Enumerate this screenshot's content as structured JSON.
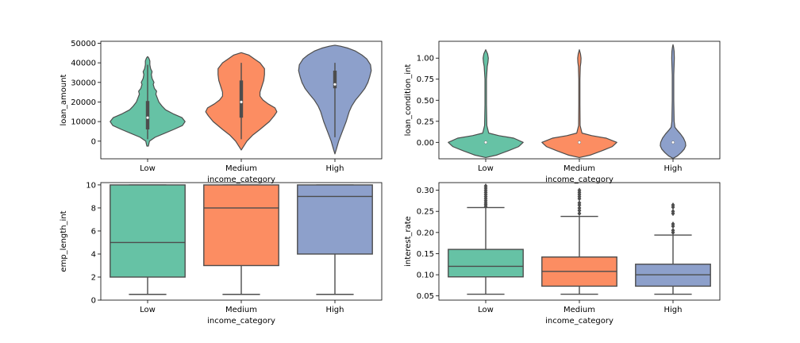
{
  "colors": {
    "Low": "#66c2a5",
    "Medium": "#fc8d62",
    "High": "#8da0cb",
    "edge": "#4d4d4d"
  },
  "chart_data": [
    {
      "type": "violin",
      "xlabel": "income_category",
      "ylabel": "loan_amount",
      "categories": [
        "Low",
        "Medium",
        "High"
      ],
      "ylim": [
        -9000,
        51000
      ],
      "yticks": [
        0,
        10000,
        20000,
        30000,
        40000,
        50000
      ],
      "ytick_labels": [
        "0",
        "10000",
        "20000",
        "30000",
        "40000",
        "50000"
      ],
      "series": [
        {
          "name": "Low",
          "profile": [
            [
              -2500,
              0.02
            ],
            [
              0,
              0.05
            ],
            [
              2000,
              0.2
            ],
            [
              4000,
              0.45
            ],
            [
              6000,
              0.7
            ],
            [
              8000,
              0.93
            ],
            [
              10000,
              1.0
            ],
            [
              12000,
              0.92
            ],
            [
              14000,
              0.68
            ],
            [
              16000,
              0.48
            ],
            [
              18000,
              0.38
            ],
            [
              20000,
              0.3
            ],
            [
              22000,
              0.26
            ],
            [
              24000,
              0.22
            ],
            [
              25500,
              0.24
            ],
            [
              27000,
              0.18
            ],
            [
              29000,
              0.15
            ],
            [
              30000,
              0.17
            ],
            [
              32000,
              0.12
            ],
            [
              34000,
              0.1
            ],
            [
              35500,
              0.12
            ],
            [
              37000,
              0.08
            ],
            [
              39000,
              0.06
            ],
            [
              41000,
              0.06
            ],
            [
              42500,
              0.03
            ],
            [
              43200,
              0.0
            ]
          ],
          "q1": 6000,
          "median": 12000,
          "q3": 20500,
          "wmin": 1000,
          "wmax": 39000
        },
        {
          "name": "Medium",
          "profile": [
            [
              -4500,
              0.0
            ],
            [
              -3000,
              0.05
            ],
            [
              0,
              0.15
            ],
            [
              3000,
              0.3
            ],
            [
              6000,
              0.5
            ],
            [
              10000,
              0.75
            ],
            [
              13000,
              0.88
            ],
            [
              15000,
              0.95
            ],
            [
              17000,
              0.9
            ],
            [
              19000,
              0.72
            ],
            [
              21000,
              0.58
            ],
            [
              23000,
              0.5
            ],
            [
              25000,
              0.5
            ],
            [
              28000,
              0.55
            ],
            [
              31000,
              0.6
            ],
            [
              34000,
              0.62
            ],
            [
              37000,
              0.62
            ],
            [
              40000,
              0.5
            ],
            [
              42000,
              0.35
            ],
            [
              44000,
              0.2
            ],
            [
              45200,
              0.0
            ]
          ],
          "q1": 12000,
          "median": 20000,
          "q3": 31000,
          "wmin": 1000,
          "wmax": 40000
        },
        {
          "name": "High",
          "profile": [
            [
              -6500,
              0.0
            ],
            [
              -4000,
              0.04
            ],
            [
              0,
              0.1
            ],
            [
              5000,
              0.2
            ],
            [
              10000,
              0.3
            ],
            [
              15000,
              0.38
            ],
            [
              18000,
              0.45
            ],
            [
              21000,
              0.55
            ],
            [
              24000,
              0.68
            ],
            [
              27000,
              0.8
            ],
            [
              30000,
              0.88
            ],
            [
              33000,
              0.93
            ],
            [
              36000,
              0.97
            ],
            [
              39000,
              0.95
            ],
            [
              42000,
              0.85
            ],
            [
              44000,
              0.72
            ],
            [
              46000,
              0.55
            ],
            [
              47500,
              0.35
            ],
            [
              48500,
              0.15
            ],
            [
              49000,
              0.0
            ]
          ],
          "q1": 27000,
          "median": 29000,
          "q3": 36000,
          "wmin": 2000,
          "wmax": 40000
        }
      ]
    },
    {
      "type": "violin",
      "xlabel": "income_category",
      "ylabel": "loan_condition_int",
      "categories": [
        "Low",
        "Medium",
        "High"
      ],
      "ylim": [
        -0.195,
        1.2
      ],
      "yticks": [
        0.0,
        0.25,
        0.5,
        0.75,
        1.0
      ],
      "ytick_labels": [
        "0.00",
        "0.25",
        "0.50",
        "0.75",
        "1.00"
      ],
      "series": [
        {
          "name": "Low",
          "profile": [
            [
              -0.18,
              0.0
            ],
            [
              -0.15,
              0.3
            ],
            [
              -0.1,
              0.6
            ],
            [
              -0.05,
              0.88
            ],
            [
              0.0,
              1.0
            ],
            [
              0.05,
              0.75
            ],
            [
              0.08,
              0.35
            ],
            [
              0.11,
              0.08
            ],
            [
              0.2,
              0.03
            ],
            [
              0.45,
              0.02
            ],
            [
              0.75,
              0.02
            ],
            [
              0.9,
              0.04
            ],
            [
              0.95,
              0.06
            ],
            [
              1.0,
              0.07
            ],
            [
              1.05,
              0.05
            ],
            [
              1.1,
              0.0
            ]
          ],
          "q1": 0,
          "median": 0,
          "q3": 0,
          "wmin": 0,
          "wmax": 0
        },
        {
          "name": "Medium",
          "profile": [
            [
              -0.18,
              0.0
            ],
            [
              -0.15,
              0.3
            ],
            [
              -0.1,
              0.6
            ],
            [
              -0.05,
              0.88
            ],
            [
              0.0,
              1.0
            ],
            [
              0.05,
              0.72
            ],
            [
              0.08,
              0.33
            ],
            [
              0.11,
              0.07
            ],
            [
              0.2,
              0.02
            ],
            [
              0.45,
              0.015
            ],
            [
              0.75,
              0.015
            ],
            [
              0.9,
              0.025
            ],
            [
              0.95,
              0.04
            ],
            [
              1.0,
              0.045
            ],
            [
              1.05,
              0.03
            ],
            [
              1.1,
              0.0
            ]
          ],
          "q1": 0,
          "median": 0,
          "q3": 0,
          "wmin": 0,
          "wmax": 0
        },
        {
          "name": "High",
          "profile": [
            [
              -0.19,
              0.0
            ],
            [
              -0.16,
              0.12
            ],
            [
              -0.12,
              0.22
            ],
            [
              -0.08,
              0.3
            ],
            [
              -0.04,
              0.34
            ],
            [
              0.0,
              0.33
            ],
            [
              0.05,
              0.28
            ],
            [
              0.1,
              0.2
            ],
            [
              0.14,
              0.12
            ],
            [
              0.18,
              0.05
            ],
            [
              0.25,
              0.03
            ],
            [
              0.5,
              0.02
            ],
            [
              0.8,
              0.02
            ],
            [
              0.93,
              0.03
            ],
            [
              1.0,
              0.035
            ],
            [
              1.08,
              0.03
            ],
            [
              1.13,
              0.015
            ],
            [
              1.16,
              0.0
            ]
          ],
          "q1": 0,
          "median": 0,
          "q3": 0,
          "wmin": 0,
          "wmax": 0
        }
      ]
    },
    {
      "type": "box",
      "xlabel": "income_category",
      "ylabel": "emp_length_int",
      "categories": [
        "Low",
        "Medium",
        "High"
      ],
      "ylim": [
        0,
        10.2
      ],
      "yticks": [
        0,
        2,
        4,
        6,
        8,
        10
      ],
      "ytick_labels": [
        "0",
        "2",
        "4",
        "6",
        "8",
        "10"
      ],
      "series": [
        {
          "name": "Low",
          "q1": 2,
          "median": 5,
          "q3": 10,
          "wmin": 0.5,
          "wmax": 10,
          "outliers": []
        },
        {
          "name": "Medium",
          "q1": 3,
          "median": 8,
          "q3": 10,
          "wmin": 0.5,
          "wmax": 10,
          "outliers": []
        },
        {
          "name": "High",
          "q1": 4,
          "median": 9,
          "q3": 10,
          "wmin": 0.5,
          "wmax": 10,
          "outliers": []
        }
      ]
    },
    {
      "type": "box",
      "xlabel": "income_category",
      "ylabel": "interest_rate",
      "categories": [
        "Low",
        "Medium",
        "High"
      ],
      "ylim": [
        0.04,
        0.318
      ],
      "yticks": [
        0.05,
        0.1,
        0.15,
        0.2,
        0.25,
        0.3
      ],
      "ytick_labels": [
        "0.05",
        "0.10",
        "0.15",
        "0.20",
        "0.25",
        "0.30"
      ],
      "series": [
        {
          "name": "Low",
          "q1": 0.095,
          "median": 0.12,
          "q3": 0.16,
          "wmin": 0.054,
          "wmax": 0.259,
          "outliers": [
            0.262,
            0.266,
            0.27,
            0.275,
            0.28,
            0.285,
            0.29,
            0.295,
            0.3,
            0.305,
            0.31
          ]
        },
        {
          "name": "Medium",
          "q1": 0.073,
          "median": 0.108,
          "q3": 0.142,
          "wmin": 0.054,
          "wmax": 0.238,
          "outliers": [
            0.245,
            0.252,
            0.258,
            0.265,
            0.27,
            0.28,
            0.285,
            0.29,
            0.295,
            0.3
          ]
        },
        {
          "name": "High",
          "q1": 0.073,
          "median": 0.1,
          "q3": 0.125,
          "wmin": 0.054,
          "wmax": 0.194,
          "outliers": [
            0.2,
            0.205,
            0.215,
            0.22,
            0.245,
            0.25,
            0.26,
            0.265
          ]
        }
      ]
    }
  ]
}
